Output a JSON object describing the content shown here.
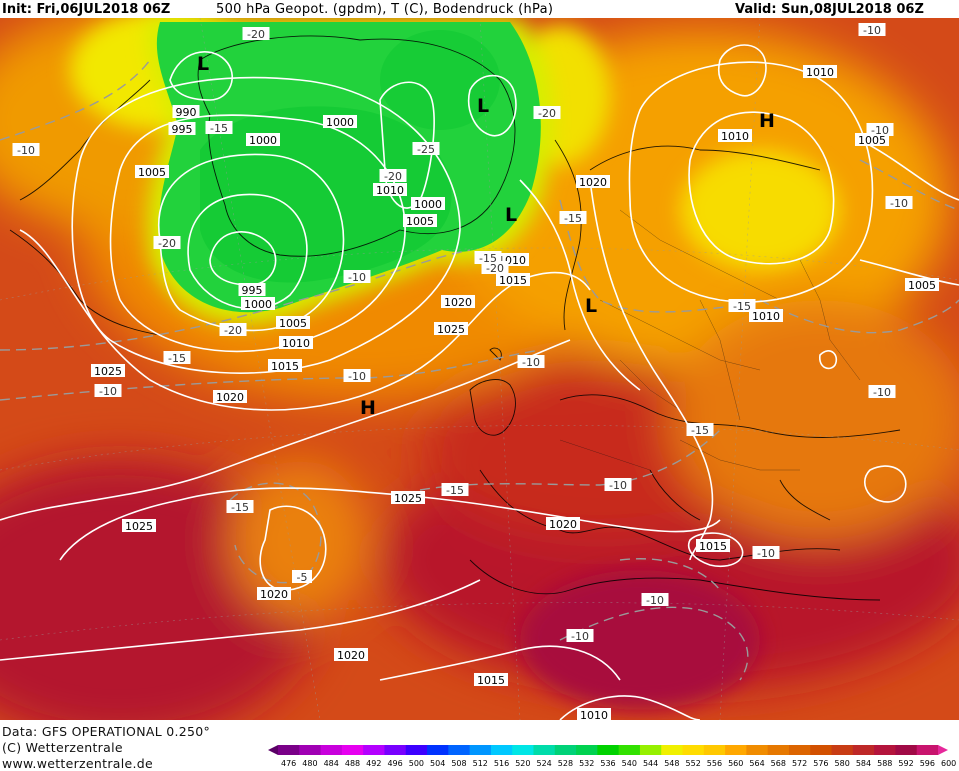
{
  "header": {
    "init": "Init: Fri,06JUL2018 06Z",
    "title": "500 hPa Geopot. (gpdm), T (C), Bodendruck (hPa)",
    "valid": "Valid: Sun,08JUL2018 06Z"
  },
  "footer": {
    "data_line": "Data: GFS OPERATIONAL 0.250°",
    "copyright": "(C) Wetterzentrale",
    "url": "www.wetterzentrale.de"
  },
  "legend": {
    "ticks": [
      "476",
      "480",
      "484",
      "488",
      "492",
      "496",
      "500",
      "504",
      "508",
      "512",
      "516",
      "520",
      "524",
      "528",
      "532",
      "536",
      "540",
      "544",
      "548",
      "552",
      "556",
      "560",
      "564",
      "568",
      "572",
      "576",
      "580",
      "584",
      "588",
      "592",
      "596",
      "600"
    ],
    "colors": [
      "#5a0066",
      "#7a0088",
      "#a000b4",
      "#c800dc",
      "#e600f0",
      "#b400ff",
      "#7800ff",
      "#3c00ff",
      "#0032ff",
      "#0064ff",
      "#0096ff",
      "#00c8ff",
      "#00e6e6",
      "#00dcaa",
      "#00d278",
      "#00d250",
      "#00d200",
      "#32e100",
      "#96f000",
      "#f0f000",
      "#ffdc00",
      "#ffc800",
      "#ffa800",
      "#f08c00",
      "#e67800",
      "#dc6400",
      "#d25000",
      "#c83c14",
      "#be2828",
      "#b4143c",
      "#a00a46",
      "#c8146e",
      "#e6289b"
    ]
  },
  "pressure_labels": [
    {
      "text": "990"
    },
    {
      "text": "995"
    },
    {
      "text": "1000"
    },
    {
      "text": "1005"
    },
    {
      "text": "1000"
    },
    {
      "text": "1010"
    },
    {
      "text": "1000"
    },
    {
      "text": "1005"
    },
    {
      "text": "995"
    },
    {
      "text": "1000"
    },
    {
      "text": "1005"
    },
    {
      "text": "1010"
    },
    {
      "text": "1015"
    },
    {
      "text": "1025"
    },
    {
      "text": "1020"
    },
    {
      "text": "1020"
    },
    {
      "text": "1025"
    },
    {
      "text": "1010"
    },
    {
      "text": "1015"
    },
    {
      "text": "1020"
    },
    {
      "text": "1010"
    },
    {
      "text": "1005"
    },
    {
      "text": "1010"
    },
    {
      "text": "1005"
    },
    {
      "text": "1010"
    },
    {
      "text": "1010"
    },
    {
      "text": "1025"
    },
    {
      "text": "1020"
    },
    {
      "text": "1015"
    },
    {
      "text": "1025"
    },
    {
      "text": "1020"
    },
    {
      "text": "1020"
    },
    {
      "text": "1015"
    },
    {
      "text": "1010"
    }
  ],
  "temp_labels": [
    {
      "text": "-20"
    },
    {
      "text": "-15"
    },
    {
      "text": "-10"
    },
    {
      "text": "-20"
    },
    {
      "text": "-25"
    },
    {
      "text": "-20"
    },
    {
      "text": "-20"
    },
    {
      "text": "-20"
    },
    {
      "text": "-15"
    },
    {
      "text": "-10"
    },
    {
      "text": "-20"
    },
    {
      "text": "-15"
    },
    {
      "text": "-10"
    },
    {
      "text": "-10"
    },
    {
      "text": "-10"
    },
    {
      "text": "-15"
    },
    {
      "text": "-15"
    },
    {
      "text": "-10"
    },
    {
      "text": "-15"
    },
    {
      "text": "-10"
    },
    {
      "text": "-10"
    },
    {
      "text": "-10"
    },
    {
      "text": "-15"
    },
    {
      "text": "-10"
    },
    {
      "text": "-10"
    },
    {
      "text": "-10"
    },
    {
      "text": "-10"
    },
    {
      "text": "-5"
    },
    {
      "text": "-10"
    },
    {
      "text": "-10"
    },
    {
      "text": "-15"
    }
  ],
  "centers": [
    {
      "text": "L"
    },
    {
      "text": "L"
    },
    {
      "text": "L"
    },
    {
      "text": "L"
    },
    {
      "text": "H"
    },
    {
      "text": "H"
    }
  ]
}
